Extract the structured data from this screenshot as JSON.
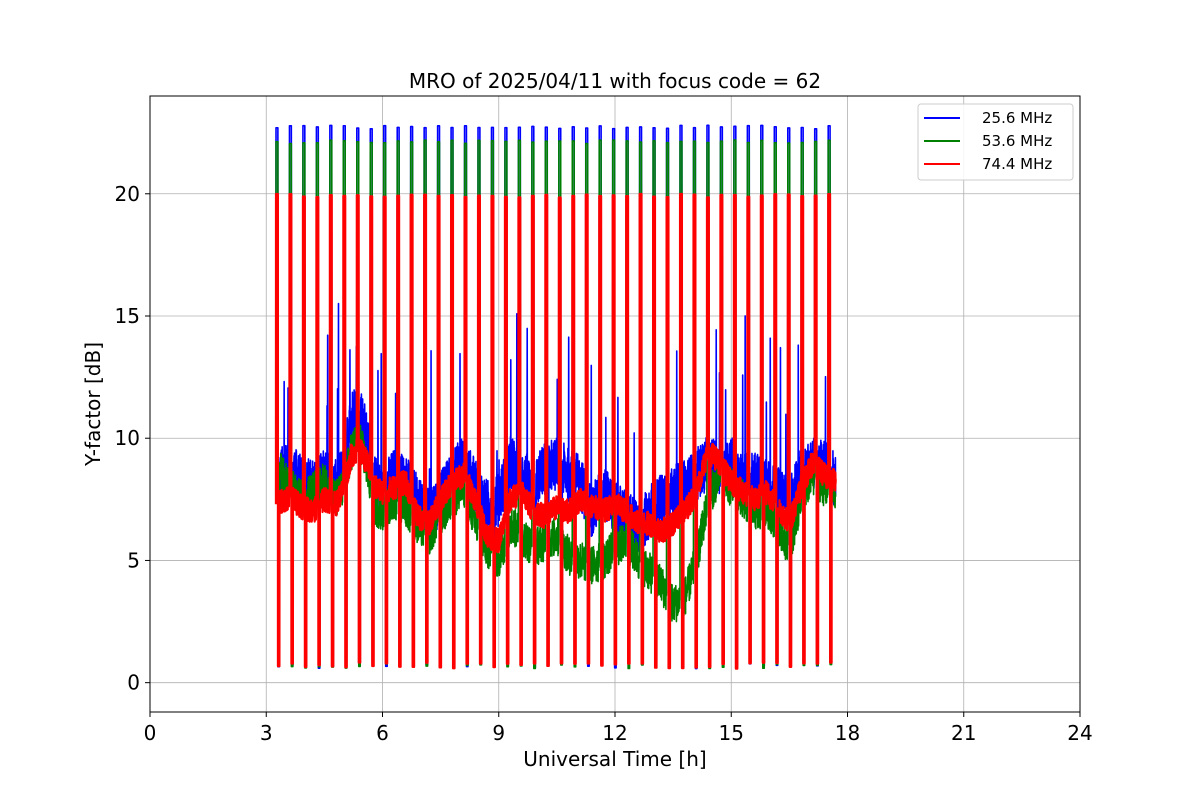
{
  "chart_data": {
    "type": "line",
    "title": "MRO of 2025/04/11 with focus code = 62",
    "xlabel": "Universal Time [h]",
    "ylabel": "Y-factor [dB]",
    "xlim": [
      0,
      24
    ],
    "ylim": [
      -1.2,
      24.0
    ],
    "x_ticks": [
      0,
      3,
      6,
      9,
      12,
      15,
      18,
      21,
      24
    ],
    "x_tick_labels": [
      "0",
      "3",
      "6",
      "9",
      "12",
      "15",
      "18",
      "21",
      "24"
    ],
    "y_ticks": [
      0,
      5,
      10,
      15,
      20
    ],
    "y_tick_labels": [
      "0",
      "5",
      "10",
      "15",
      "20"
    ],
    "grid": true,
    "legend_position": "top-right",
    "calibration_pulses": {
      "start_h": 3.25,
      "end_h": 17.5,
      "count": 42,
      "peak_db": [
        22.8,
        22.2,
        20.0
      ],
      "floor_db": [
        0.7,
        0.7,
        0.7
      ]
    },
    "series": [
      {
        "name": "25.6 MHz",
        "color": "#0000ff",
        "x": [
          3.3,
          3.6,
          3.9,
          4.2,
          4.5,
          4.8,
          5.0,
          5.2,
          5.4,
          5.6,
          5.8,
          6.0,
          6.3,
          6.6,
          6.9,
          7.2,
          7.5,
          7.8,
          8.1,
          8.4,
          8.7,
          9.0,
          9.3,
          9.6,
          9.9,
          10.2,
          10.5,
          10.8,
          11.1,
          11.4,
          11.7,
          12.0,
          12.3,
          12.6,
          12.9,
          13.2,
          13.5,
          13.8,
          14.1,
          14.4,
          14.7,
          15.0,
          15.3,
          15.6,
          15.9,
          16.2,
          16.5,
          16.8,
          17.1,
          17.4,
          17.7
        ],
        "values": [
          8.5,
          8.8,
          8.2,
          8.0,
          8.5,
          8.0,
          8.8,
          11.0,
          11.3,
          10.0,
          8.2,
          7.8,
          8.5,
          8.2,
          7.5,
          7.0,
          7.5,
          8.5,
          9.0,
          8.0,
          7.2,
          7.5,
          9.0,
          8.5,
          8.0,
          8.8,
          9.0,
          8.5,
          8.2,
          7.0,
          7.8,
          7.2,
          6.8,
          6.2,
          7.0,
          7.5,
          7.8,
          8.0,
          8.5,
          9.0,
          8.8,
          9.0,
          8.2,
          8.5,
          8.0,
          7.8,
          7.2,
          8.5,
          9.0,
          8.8,
          8.3
        ]
      },
      {
        "name": "53.6 MHz",
        "color": "#008000",
        "x": [
          3.3,
          3.6,
          3.9,
          4.2,
          4.5,
          4.8,
          5.0,
          5.2,
          5.4,
          5.6,
          5.8,
          6.0,
          6.3,
          6.6,
          6.9,
          7.2,
          7.5,
          7.8,
          8.1,
          8.4,
          8.7,
          9.0,
          9.3,
          9.6,
          9.9,
          10.2,
          10.5,
          10.8,
          11.1,
          11.4,
          11.7,
          12.0,
          12.3,
          12.6,
          12.9,
          13.2,
          13.5,
          13.8,
          14.1,
          14.4,
          14.7,
          15.0,
          15.3,
          15.6,
          15.9,
          16.2,
          16.5,
          16.8,
          17.1,
          17.4,
          17.7
        ],
        "values": [
          8.8,
          8.0,
          7.5,
          7.8,
          8.2,
          7.5,
          8.0,
          9.5,
          10.0,
          8.8,
          7.2,
          7.0,
          7.5,
          7.2,
          6.5,
          6.0,
          6.8,
          7.5,
          8.0,
          6.5,
          5.5,
          5.0,
          6.5,
          6.0,
          5.5,
          5.8,
          6.0,
          5.2,
          5.0,
          4.8,
          5.0,
          5.5,
          5.8,
          5.0,
          4.5,
          4.0,
          3.2,
          3.5,
          5.0,
          7.5,
          8.5,
          8.0,
          7.5,
          7.0,
          7.2,
          6.5,
          5.5,
          7.5,
          8.5,
          8.0,
          7.8
        ]
      },
      {
        "name": "74.4 MHz",
        "color": "#ff0000",
        "x": [
          3.3,
          3.6,
          3.9,
          4.2,
          4.5,
          4.8,
          5.0,
          5.2,
          5.4,
          5.6,
          5.8,
          6.0,
          6.3,
          6.6,
          6.9,
          7.2,
          7.5,
          7.8,
          8.1,
          8.4,
          8.7,
          9.0,
          9.3,
          9.6,
          9.9,
          10.2,
          10.5,
          10.8,
          11.1,
          11.4,
          11.7,
          12.0,
          12.3,
          12.6,
          12.9,
          13.2,
          13.5,
          13.8,
          14.1,
          14.4,
          14.7,
          15.0,
          15.3,
          15.6,
          15.9,
          16.2,
          16.5,
          16.8,
          17.1,
          17.4,
          17.7
        ],
        "values": [
          7.3,
          7.6,
          7.2,
          7.0,
          7.5,
          7.3,
          8.0,
          9.3,
          9.6,
          9.0,
          8.0,
          7.8,
          8.0,
          8.2,
          6.8,
          6.5,
          7.5,
          8.2,
          8.5,
          7.5,
          6.0,
          5.8,
          7.5,
          7.8,
          7.0,
          6.8,
          7.2,
          7.0,
          7.5,
          7.2,
          7.0,
          7.3,
          7.0,
          6.5,
          6.5,
          6.2,
          6.5,
          7.0,
          7.8,
          9.5,
          9.0,
          8.2,
          7.8,
          7.5,
          7.8,
          7.2,
          6.5,
          8.0,
          9.0,
          8.5,
          8.2
        ]
      }
    ]
  }
}
